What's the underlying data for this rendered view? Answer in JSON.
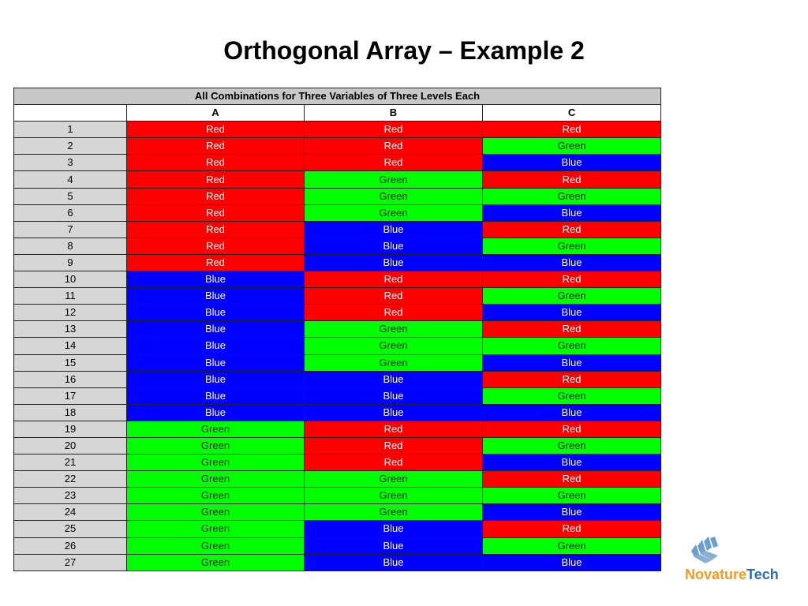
{
  "title": "Orthogonal Array – Example 2",
  "table": {
    "caption": "All Combinations for Three Variables of Three Levels Each",
    "corner": "",
    "columns": [
      "A",
      "B",
      "C"
    ],
    "rows": [
      {
        "n": "1",
        "a": "Red",
        "b": "Red",
        "c": "Red"
      },
      {
        "n": "2",
        "a": "Red",
        "b": "Red",
        "c": "Green"
      },
      {
        "n": "3",
        "a": "Red",
        "b": "Red",
        "c": "Blue"
      },
      {
        "n": "4",
        "a": "Red",
        "b": "Green",
        "c": "Red"
      },
      {
        "n": "5",
        "a": "Red",
        "b": "Green",
        "c": "Green"
      },
      {
        "n": "6",
        "a": "Red",
        "b": "Green",
        "c": "Blue"
      },
      {
        "n": "7",
        "a": "Red",
        "b": "Blue",
        "c": "Red"
      },
      {
        "n": "8",
        "a": "Red",
        "b": "Blue",
        "c": "Green"
      },
      {
        "n": "9",
        "a": "Red",
        "b": "Blue",
        "c": "Blue"
      },
      {
        "n": "10",
        "a": "Blue",
        "b": "Red",
        "c": "Red"
      },
      {
        "n": "11",
        "a": "Blue",
        "b": "Red",
        "c": "Green"
      },
      {
        "n": "12",
        "a": "Blue",
        "b": "Red",
        "c": "Blue"
      },
      {
        "n": "13",
        "a": "Blue",
        "b": "Green",
        "c": "Red"
      },
      {
        "n": "14",
        "a": "Blue",
        "b": "Green",
        "c": "Green"
      },
      {
        "n": "15",
        "a": "Blue",
        "b": "Green",
        "c": "Blue"
      },
      {
        "n": "16",
        "a": "Blue",
        "b": "Blue",
        "c": "Red"
      },
      {
        "n": "17",
        "a": "Blue",
        "b": "Blue",
        "c": "Green"
      },
      {
        "n": "18",
        "a": "Blue",
        "b": "Blue",
        "c": "Blue"
      },
      {
        "n": "19",
        "a": "Green",
        "b": "Red",
        "c": "Red"
      },
      {
        "n": "20",
        "a": "Green",
        "b": "Red",
        "c": "Green"
      },
      {
        "n": "21",
        "a": "Green",
        "b": "Red",
        "c": "Blue"
      },
      {
        "n": "22",
        "a": "Green",
        "b": "Green",
        "c": "Red"
      },
      {
        "n": "23",
        "a": "Green",
        "b": "Green",
        "c": "Green"
      },
      {
        "n": "24",
        "a": "Green",
        "b": "Green",
        "c": "Blue"
      },
      {
        "n": "25",
        "a": "Green",
        "b": "Blue",
        "c": "Red"
      },
      {
        "n": "26",
        "a": "Green",
        "b": "Blue",
        "c": "Green"
      },
      {
        "n": "27",
        "a": "Green",
        "b": "Blue",
        "c": "Blue"
      }
    ]
  },
  "colors": {
    "Red": "#ff0000",
    "Green": "#00ff00",
    "Blue": "#0000ff",
    "header_gray": "#c8c8c8",
    "index_gray": "#d6d6d6"
  },
  "logo": {
    "icon": "novaturetech-logo-icon",
    "text_part1": "Novature",
    "text_part2": "Tech",
    "color_part1": "#f39a1e",
    "color_part2": "#2a6fb0"
  }
}
